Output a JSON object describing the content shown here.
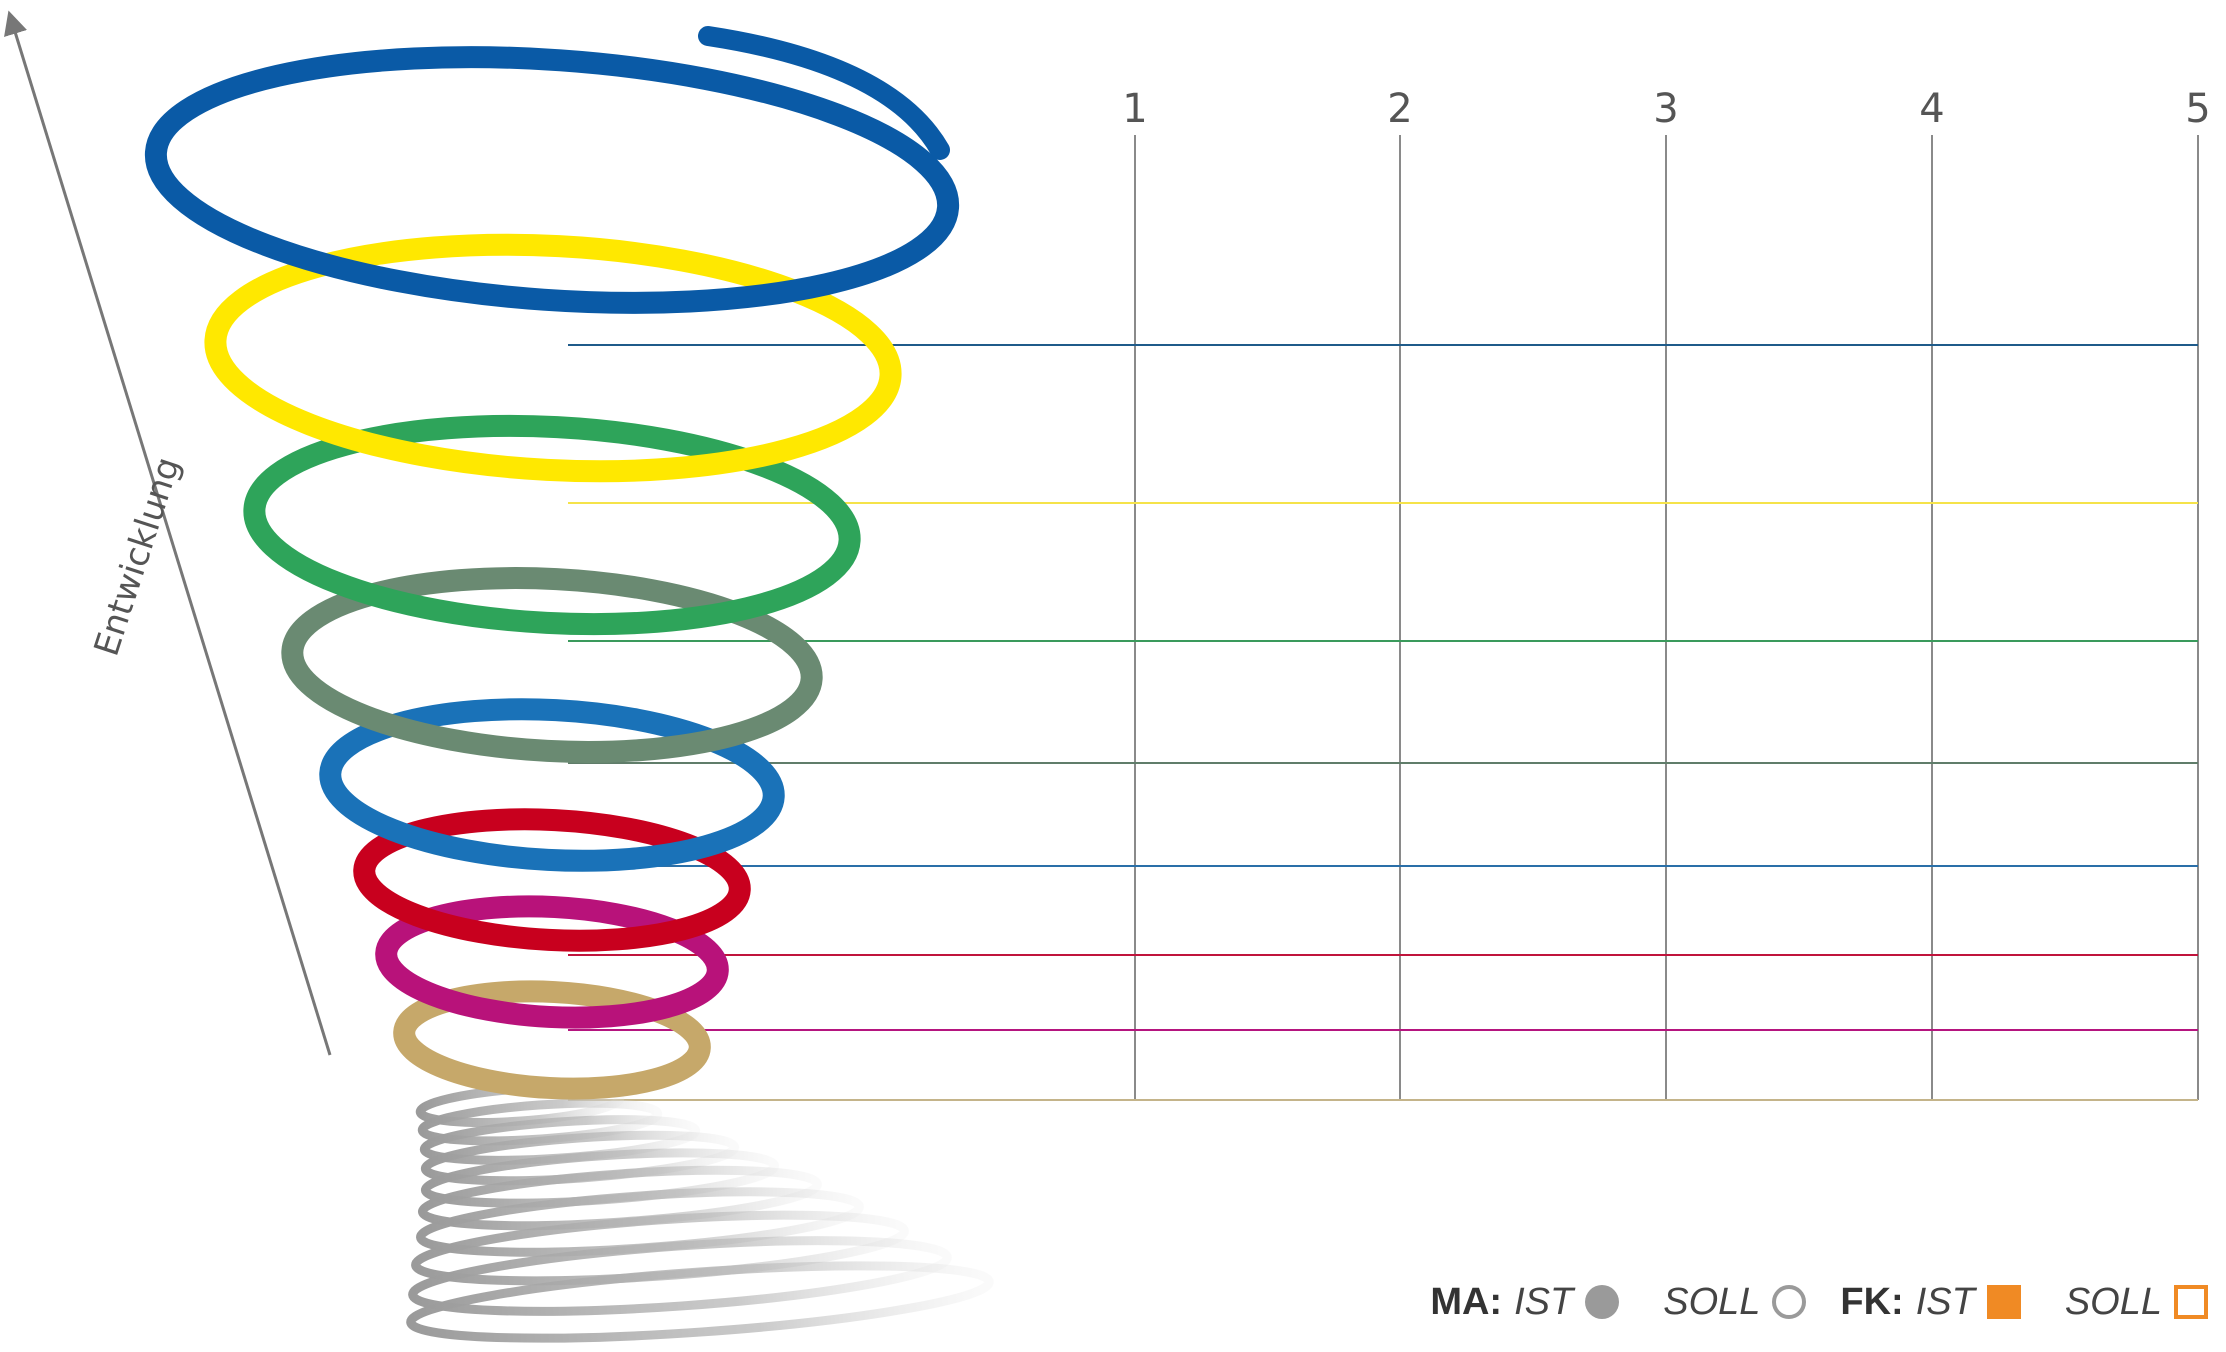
{
  "axis": {
    "ticks": [
      "1",
      "2",
      "3",
      "4",
      "5"
    ],
    "arrow_label": "Entwicklung"
  },
  "levels": [
    {
      "color": "#1f5b8a"
    },
    {
      "color": "#f5e34a"
    },
    {
      "color": "#3a9a5c"
    },
    {
      "color": "#607d6a"
    },
    {
      "color": "#2a6fa8"
    },
    {
      "color": "#c0143c"
    },
    {
      "color": "#b5157f"
    },
    {
      "color": "#c4b48a"
    }
  ],
  "spiral_colors": [
    "#0a5aa6",
    "#ffe800",
    "#2ea45a",
    "#6a8a72",
    "#1a72b8",
    "#c8001e",
    "#b8127a",
    "#c6a86a"
  ],
  "legend": {
    "ma_label": "MA:",
    "fk_label": "FK:",
    "ist": "IST",
    "soll": "SOLL",
    "ma_color": "#9a9a9a",
    "fk_color": "#f08a24"
  }
}
